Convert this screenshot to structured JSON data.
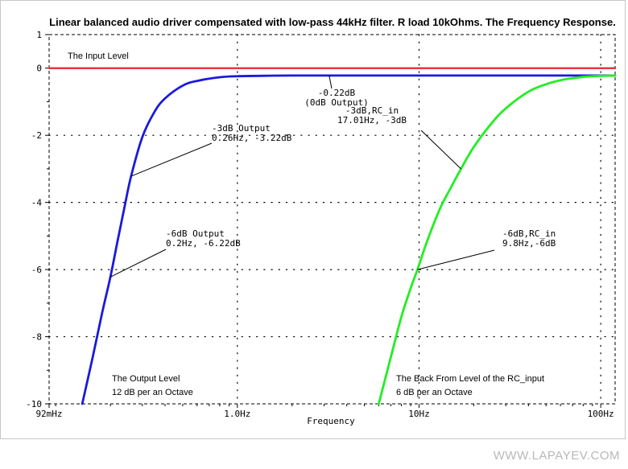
{
  "chart_data": {
    "type": "line",
    "title": "Linear  balanced audio driver compensated with low-pass 44kHz filter. R load 10kOhms. The Frequency Response.",
    "xlabel": "Frequency",
    "ylabel": "",
    "x_scale": "log",
    "xlim": [
      0.092,
      120
    ],
    "ylim": [
      -10,
      1
    ],
    "x_ticks": [
      {
        "value": 0.092,
        "label": "92mHz"
      },
      {
        "value": 1,
        "label": "1.0Hz"
      },
      {
        "value": 10,
        "label": "10Hz"
      },
      {
        "value": 100,
        "label": "100Hz"
      }
    ],
    "y_ticks": [
      {
        "value": 1,
        "label": "1"
      },
      {
        "value": 0,
        "label": "0"
      },
      {
        "value": -2,
        "label": "-2"
      },
      {
        "value": -4,
        "label": "-4"
      },
      {
        "value": -6,
        "label": "-6"
      },
      {
        "value": -8,
        "label": "-8"
      },
      {
        "value": -10,
        "label": "-10"
      }
    ],
    "grid": "dotted",
    "series": [
      {
        "name": "The Input Level",
        "color": "#e8262b",
        "x": [
          0.092,
          120
        ],
        "y": [
          0,
          0
        ]
      },
      {
        "name": "The Output Level",
        "color": "#1a1adc",
        "x": [
          0.14,
          0.16,
          0.18,
          0.2,
          0.22,
          0.24,
          0.26,
          0.3,
          0.35,
          0.4,
          0.5,
          0.6,
          0.8,
          1.0,
          1.5,
          2,
          5,
          10,
          20,
          50,
          100,
          120
        ],
        "y": [
          -10.0,
          -8.6,
          -7.3,
          -6.22,
          -5.1,
          -4.1,
          -3.22,
          -2.05,
          -1.3,
          -0.9,
          -0.52,
          -0.38,
          -0.27,
          -0.24,
          -0.225,
          -0.22,
          -0.22,
          -0.22,
          -0.22,
          -0.22,
          -0.22,
          -0.22
        ]
      },
      {
        "name": "The  Back From Level of the  RC_input",
        "color": "#22ee22",
        "x": [
          6.0,
          7.0,
          8.0,
          9.0,
          9.8,
          11,
          13,
          15,
          17.01,
          20,
          25,
          30,
          40,
          50,
          60,
          70,
          80,
          90,
          100,
          120
        ],
        "y": [
          -10.0,
          -8.6,
          -7.4,
          -6.55,
          -6.0,
          -5.2,
          -4.2,
          -3.55,
          -3.0,
          -2.35,
          -1.65,
          -1.2,
          -0.7,
          -0.48,
          -0.36,
          -0.3,
          -0.26,
          -0.24,
          -0.23,
          -0.22
        ]
      }
    ],
    "annotations": [
      {
        "id": "out3",
        "lines": [
          "-3dB Output",
          "0.26Hz, -3.22dB"
        ],
        "point": [
          0.26,
          -3.22
        ]
      },
      {
        "id": "out6",
        "lines": [
          "-6dB Output",
          "0.2Hz, -6.22dB"
        ],
        "point": [
          0.2,
          -6.22
        ]
      },
      {
        "id": "flat",
        "lines": [
          "-0.22dB",
          "(0dB Output)"
        ],
        "point": [
          3.2,
          -0.22
        ]
      },
      {
        "id": "rc3",
        "lines": [
          "-3dB,RC_in",
          "17.01Hz, -3dB"
        ],
        "point": [
          17.01,
          -3.0
        ]
      },
      {
        "id": "rc6",
        "lines": [
          "-6dB,RC_in",
          "9.8Hz,-6dB"
        ],
        "point": [
          9.8,
          -6.0
        ]
      }
    ],
    "series_labels": [
      {
        "series": 0,
        "lines": [
          "The Input Level"
        ]
      },
      {
        "series": 1,
        "lines": [
          "The Output Level",
          "12 dB per an Octave"
        ]
      },
      {
        "series": 2,
        "lines": [
          "The  Back From Level of the  RC_input",
          "6 dB per an Octave"
        ]
      }
    ]
  },
  "watermark": "WWW.LAPAYEV.COM"
}
